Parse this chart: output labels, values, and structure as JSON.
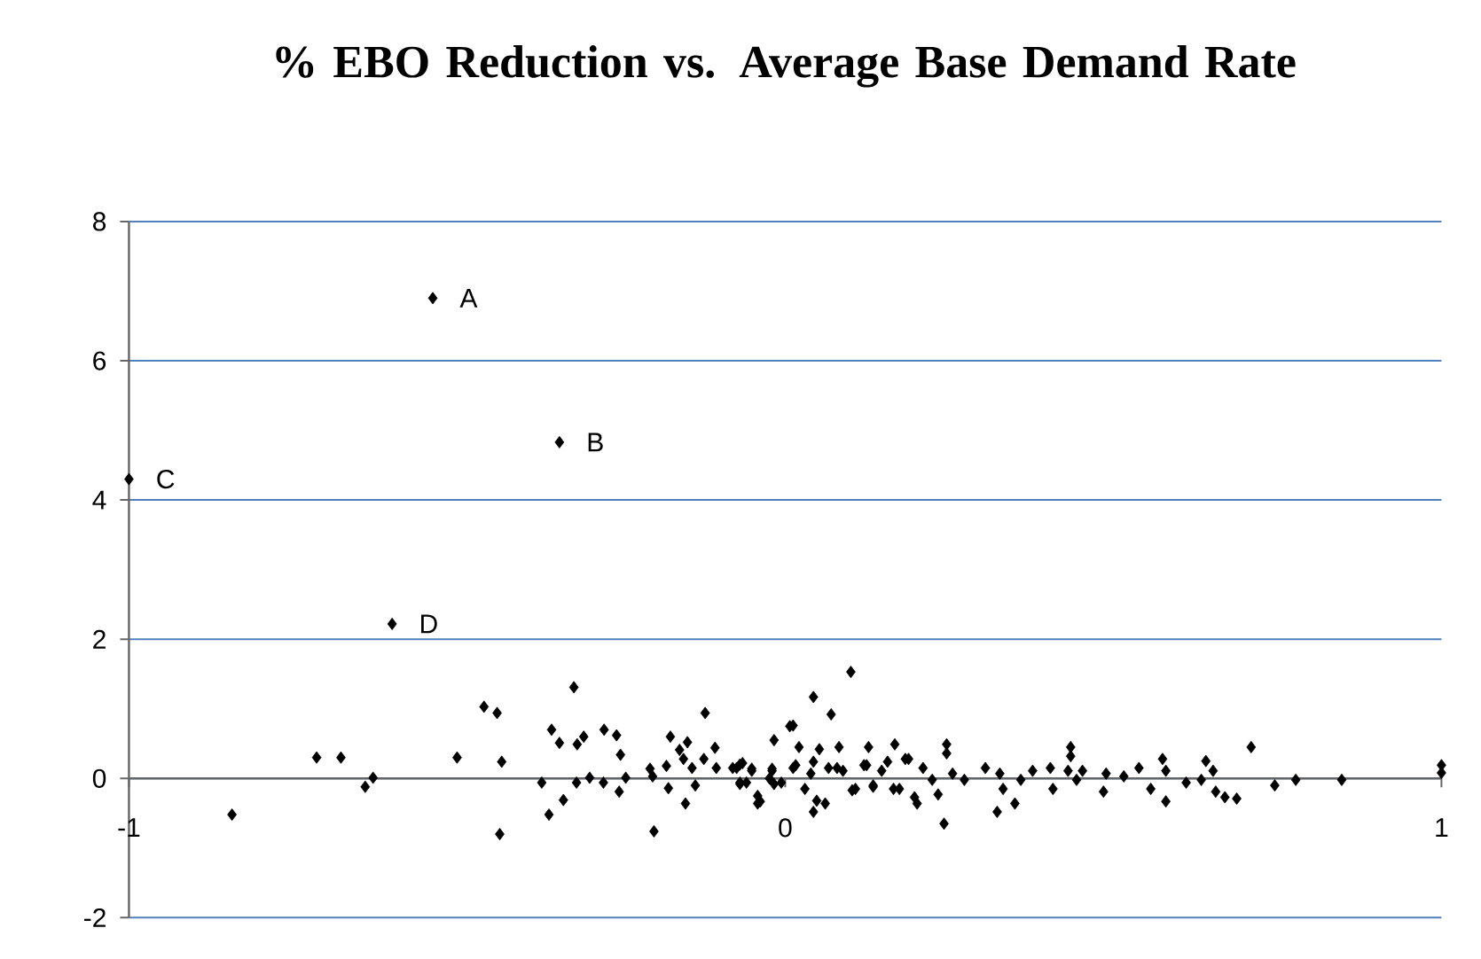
{
  "chart_data": {
    "type": "scatter",
    "title": "% EBO Reduction vs. Average Base Demand Rate",
    "x": [
      -0.537,
      -0.344,
      -1.0,
      -0.599,
      -0.843,
      -0.714,
      -0.677,
      -0.64,
      -0.628,
      -0.5,
      -0.459,
      -0.439,
      -0.432,
      -0.435,
      -0.371,
      -0.356,
      -0.344,
      -0.36,
      -0.338,
      -0.322,
      -0.317,
      -0.307,
      -0.318,
      -0.298,
      -0.276,
      -0.257,
      -0.251,
      -0.277,
      -0.243,
      -0.253,
      -0.206,
      -0.202,
      -0.2,
      -0.178,
      -0.181,
      -0.175,
      -0.161,
      -0.149,
      -0.152,
      -0.155,
      -0.142,
      -0.137,
      -0.122,
      -0.124,
      -0.107,
      -0.105,
      -0.08,
      -0.069,
      -0.069,
      -0.051,
      -0.059,
      -0.042,
      -0.042,
      -0.02,
      -0.017,
      -0.017,
      0.007,
      0.012,
      0.043,
      0.07,
      0.1,
      0.021,
      0.052,
      0.082,
      0.127,
      0.167,
      0.016,
      0.039,
      0.066,
      0.088,
      0.12,
      0.147,
      0.188,
      0.03,
      0.048,
      0.043,
      0.061,
      0.102,
      0.134,
      0.165,
      0.197,
      -0.006,
      -0.024,
      -0.069,
      -0.065,
      -0.038,
      -0.074,
      -0.051,
      -0.02,
      0.012,
      0.043,
      0.079,
      0.107,
      0.124,
      0.156,
      0.183,
      0.134,
      0.174,
      0.201,
      0.21,
      0.224,
      0.242,
      0.233,
      0.255,
      0.246,
      0.246,
      0.273,
      0.305,
      0.327,
      0.323,
      0.332,
      0.35,
      0.359,
      0.377,
      0.404,
      0.408,
      0.431,
      0.435,
      0.435,
      0.453,
      0.444,
      0.485,
      0.489,
      0.516,
      0.539,
      0.557,
      0.575,
      0.58,
      0.58,
      0.611,
      0.634,
      0.641,
      0.652,
      0.656,
      0.67,
      0.688,
      0.71,
      0.746,
      0.778,
      0.848,
      1.0,
      1.0
    ],
    "values": [
      6.9,
      4.83,
      4.3,
      2.22,
      -0.52,
      0.3,
      0.3,
      -0.12,
      0.01,
      0.3,
      1.03,
      0.94,
      0.24,
      -0.8,
      -0.06,
      0.7,
      0.51,
      -0.52,
      -0.31,
      1.31,
      0.49,
      0.6,
      -0.06,
      0.01,
      0.7,
      0.62,
      0.34,
      -0.06,
      0.01,
      -0.19,
      0.14,
      0.03,
      -0.76,
      -0.14,
      0.18,
      0.6,
      0.41,
      0.52,
      -0.36,
      0.28,
      0.15,
      -0.1,
      0.94,
      0.28,
      0.44,
      0.15,
      0.15,
      0.2,
      -0.08,
      0.14,
      -0.06,
      -0.36,
      -0.25,
      0.14,
      0.55,
      -0.08,
      0.75,
      0.76,
      1.17,
      0.92,
      1.53,
      0.45,
      0.42,
      0.45,
      0.45,
      0.49,
      0.19,
      0.07,
      0.15,
      0.11,
      0.19,
      0.11,
      0.28,
      -0.15,
      -0.32,
      -0.48,
      -0.36,
      -0.17,
      -0.12,
      -0.15,
      -0.27,
      -0.06,
      0.0,
      -0.06,
      0.22,
      -0.33,
      0.15,
      0.11,
      0.11,
      0.15,
      0.24,
      0.15,
      -0.15,
      0.19,
      0.24,
      0.28,
      -0.1,
      -0.15,
      -0.36,
      0.15,
      -0.02,
      -0.65,
      -0.23,
      0.07,
      0.36,
      0.49,
      -0.02,
      0.15,
      0.07,
      -0.48,
      -0.15,
      -0.36,
      -0.02,
      0.11,
      0.15,
      -0.15,
      0.11,
      0.32,
      0.45,
      0.11,
      -0.02,
      -0.19,
      0.07,
      0.03,
      0.15,
      -0.15,
      0.28,
      0.11,
      -0.33,
      -0.06,
      -0.02,
      0.25,
      0.11,
      -0.19,
      -0.27,
      -0.29,
      0.45,
      -0.1,
      -0.02,
      -0.02,
      0.19,
      0.08
    ],
    "color": "#000000",
    "marker": "diamond",
    "xlim": [
      -1,
      1
    ],
    "xticks": [
      -1,
      0,
      1
    ],
    "ylim": [
      -2,
      8
    ],
    "yticks": [
      -2,
      0,
      2,
      4,
      6,
      8
    ],
    "grid": "y",
    "annotations": [
      {
        "text": "A",
        "x": -0.537,
        "y": 6.9
      },
      {
        "text": "B",
        "x": -0.344,
        "y": 4.83
      },
      {
        "text": "C",
        "x": -1.0,
        "y": 4.3
      },
      {
        "text": "D",
        "x": -0.599,
        "y": 2.22
      }
    ]
  }
}
